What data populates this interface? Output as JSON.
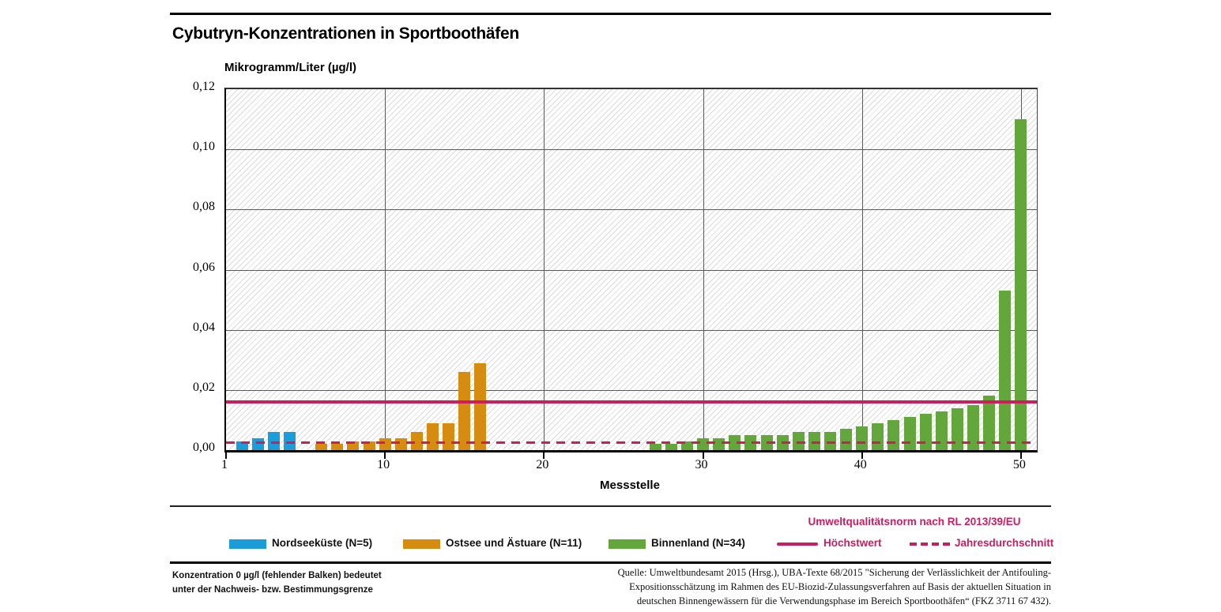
{
  "page": {
    "title": "Cybutryn-Konzentrationen in Sportboothäfen"
  },
  "chart_data": {
    "type": "bar",
    "title": "Cybutryn-Konzentrationen in Sportboothäfen",
    "ylabel": "Mikrogramm/Liter (µg/l)",
    "xlabel": "Messstelle",
    "ylim": [
      0,
      0.12
    ],
    "xlim": [
      0,
      51
    ],
    "yticks": [
      0,
      0.02,
      0.04,
      0.06,
      0.08,
      0.1,
      0.12
    ],
    "ytick_labels": [
      "0,00",
      "0,02",
      "0,04",
      "0,06",
      "0,08",
      "0,10",
      "0,12"
    ],
    "xtick_labels": [
      "1",
      "10",
      "20",
      "30",
      "40",
      "50"
    ],
    "xtick_positions": [
      0,
      10,
      20,
      30,
      40,
      50
    ],
    "grid": true,
    "background_hatch": true,
    "legend_position": "bottom",
    "series": [
      {
        "name": "Nordseeküste (N=5)",
        "color": "#1a9dd9",
        "x": [
          1,
          2,
          3,
          4,
          5
        ],
        "values": [
          0.003,
          0.004,
          0.006,
          0.006,
          0
        ]
      },
      {
        "name": "Ostsee und Ästuare (N=11)",
        "color": "#d68c10",
        "x": [
          6,
          7,
          8,
          9,
          10,
          11,
          12,
          13,
          14,
          15,
          16
        ],
        "values": [
          0.002,
          0.002,
          0.003,
          0.003,
          0.004,
          0.004,
          0.006,
          0.009,
          0.009,
          0.026,
          0.029
        ]
      },
      {
        "name": "Binnenland (N=34)",
        "color": "#62a63c",
        "x": [
          17,
          18,
          19,
          20,
          21,
          22,
          23,
          24,
          25,
          26,
          27,
          28,
          29,
          30,
          31,
          32,
          33,
          34,
          35,
          36,
          37,
          38,
          39,
          40,
          41,
          42,
          43,
          44,
          45,
          46,
          47,
          48,
          49,
          50
        ],
        "values": [
          0,
          0,
          0,
          0,
          0,
          0,
          0,
          0,
          0,
          0,
          0.002,
          0.002,
          0.003,
          0.004,
          0.004,
          0.005,
          0.005,
          0.005,
          0.005,
          0.006,
          0.006,
          0.006,
          0.007,
          0.008,
          0.009,
          0.01,
          0.011,
          0.012,
          0.013,
          0.014,
          0.015,
          0.018,
          0.053,
          0.11
        ]
      }
    ],
    "reference_lines": [
      {
        "name": "Höchstwert",
        "value": 0.016,
        "style": "solid",
        "color": "#cc1d5e"
      },
      {
        "name": "Jahresdurchschnitt",
        "value": 0.0025,
        "style": "dashed",
        "color": "#cc1d5e"
      }
    ]
  },
  "legend": {
    "series": [
      {
        "label": "Nordseeküste (N=5)",
        "color": "#1a9dd9"
      },
      {
        "label": "Ostsee und Ästuare (N=11)",
        "color": "#d68c10"
      },
      {
        "label": "Binnenland (N=34)",
        "color": "#62a63c"
      }
    ],
    "eqs_heading": "Umweltqualitätsnorm nach RL 2013/39/EU",
    "eqs_color": "#cc1d5e",
    "max_label": "Höchstwert",
    "avg_label": "Jahresdurchschnitt"
  },
  "footnotes": {
    "note_line1": "Konzentration 0 µg/l (fehlender Balken) bedeutet",
    "note_line2": "unter der Nachweis- bzw. Bestimmungsgrenze",
    "source_line1": "Quelle: Umweltbundesamt 2015 (Hrsg.), UBA-Texte 68/2015 \"Sicherung der Verlässlichkeit der Antifouling-",
    "source_line2": "Expositionsschätzung im Rahmen des EU-Biozid-Zulassungsverfahren auf Basis der aktuellen Situation in",
    "source_line3": "deutschen Binnengewässern für die Verwendungsphase im Bereich Sportboothäfen“ (FKZ 3711 67 432)."
  }
}
